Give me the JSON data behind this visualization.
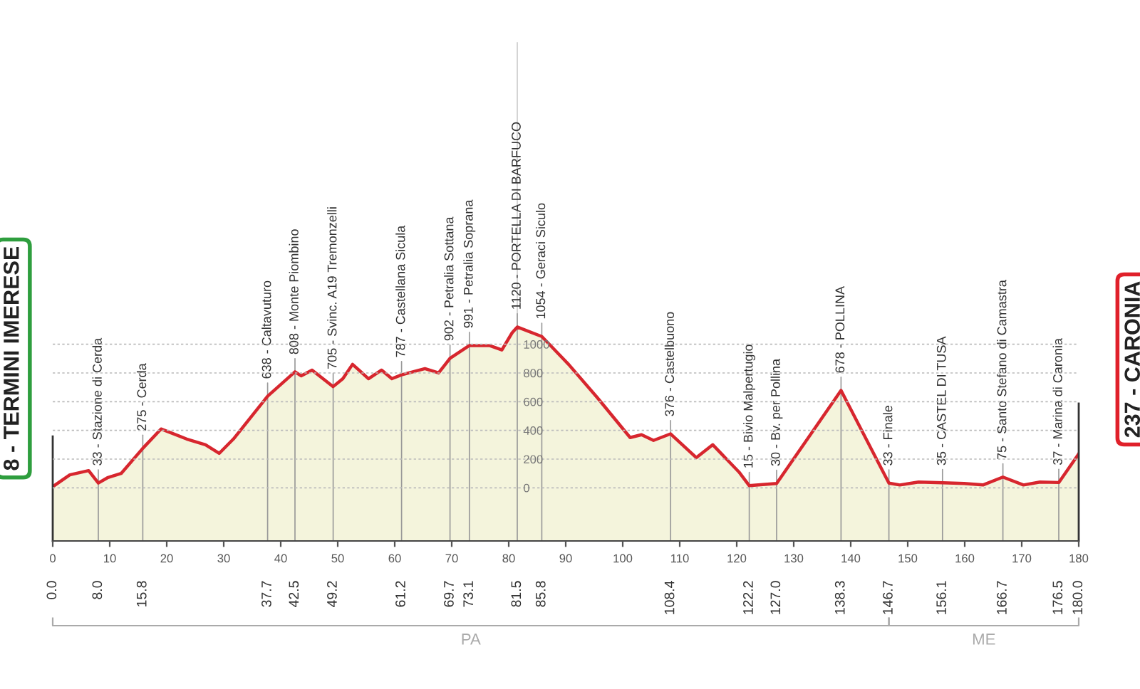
{
  "chart_data": {
    "type": "area",
    "x": [
      0,
      3.0,
      6.3,
      8.0,
      9.6,
      12.0,
      15.8,
      19.0,
      23.5,
      26.8,
      29.2,
      31.7,
      37.7,
      42.5,
      43.6,
      45.5,
      49.2,
      50.9,
      52.6,
      55.4,
      57.7,
      59.5,
      61.2,
      65.3,
      67.7,
      69.7,
      73.1,
      76.7,
      78.8,
      80.6,
      81.5,
      85.8,
      90.5,
      95.5,
      101.3,
      103.3,
      105.4,
      108.4,
      112.9,
      115.8,
      120.4,
      122.2,
      127.0,
      138.3,
      146.7,
      148.6,
      151.9,
      156.1,
      159.9,
      163.2,
      166.7,
      170.3,
      173.2,
      176.5,
      180.0
    ],
    "series": [
      {
        "color": "#f4f4dc",
        "values": [
          8,
          90,
          120,
          33,
          70,
          100,
          275,
          410,
          340,
          300,
          240,
          340,
          638,
          808,
          780,
          820,
          705,
          760,
          860,
          760,
          820,
          760,
          787,
          830,
          800,
          902,
          991,
          990,
          960,
          1080,
          1120,
          1054,
          860,
          630,
          350,
          370,
          330,
          376,
          210,
          300,
          110,
          15,
          30,
          678,
          33,
          20,
          40,
          35,
          30,
          20,
          75,
          20,
          40,
          37,
          237
        ]
      }
    ],
    "xlim": [
      0,
      180
    ],
    "x2lim": [
      0,
      180
    ],
    "xticks": [
      0,
      10,
      20,
      30,
      40,
      50,
      60,
      70,
      80,
      90,
      100,
      110,
      120,
      130,
      140,
      150,
      160,
      170,
      180
    ],
    "ylim": [
      -370,
      3100
    ],
    "yticks": [
      0,
      200,
      400,
      600,
      800,
      1000
    ],
    "x2ticks": [
      {
        "value": 0,
        "label": "0.0"
      },
      {
        "value": 8.0,
        "label": "8.0"
      },
      {
        "value": 15.8,
        "label": "15.8"
      },
      {
        "value": 37.7,
        "label": "37.7"
      },
      {
        "value": 42.5,
        "label": "42.5"
      },
      {
        "value": 49.2,
        "label": "49.2"
      },
      {
        "value": 61.2,
        "label": "61.2"
      },
      {
        "value": 69.7,
        "label": "69.7"
      },
      {
        "value": 73.1,
        "label": "73.1"
      },
      {
        "value": 81.5,
        "label": "81.5"
      },
      {
        "value": 85.8,
        "label": "85.8"
      },
      {
        "value": 108.4,
        "label": "108.4"
      },
      {
        "value": 122.2,
        "label": "122.2"
      },
      {
        "value": 127.0,
        "label": "127.0"
      },
      {
        "value": 138.3,
        "label": "138.3"
      },
      {
        "value": 146.7,
        "label": "146.7"
      },
      {
        "value": 156.1,
        "label": "156.1"
      },
      {
        "value": 166.7,
        "label": "166.7"
      },
      {
        "value": 176.5,
        "label": "176.5"
      },
      {
        "value": 180.0,
        "label": "180.0"
      }
    ],
    "grid": "y",
    "annotations": [
      "PA",
      "ME",
      {
        "text": "8 - TERMINI IMERESE",
        "x": 0,
        "y": 8
      },
      {
        "text": "33 - Stazione di Cerda",
        "x": 8.0,
        "y": 33
      },
      {
        "text": "275 - Cerda",
        "x": 15.8,
        "y": 275
      },
      {
        "text": "638 - Caltavuturo",
        "x": 37.7,
        "y": 638
      },
      {
        "text": "808 - Monte Piombino",
        "x": 42.5,
        "y": 808
      },
      {
        "text": "705 - Svinc. A19 Tremonzelli",
        "x": 49.2,
        "y": 705
      },
      {
        "text": "787 - Castellana Sicula",
        "x": 61.2,
        "y": 787
      },
      {
        "text": "902 - Petralia Sottana",
        "x": 69.7,
        "y": 902
      },
      {
        "text": "991 - Petralia Soprana",
        "x": 73.1,
        "y": 991
      },
      {
        "text": "1120 - PORTELLA DI BARFUCO",
        "x": 81.5,
        "y": 1120
      },
      {
        "text": "1054 - Geraci Siculo",
        "x": 85.8,
        "y": 1054
      },
      {
        "text": "376 - Castelbuono",
        "x": 108.4,
        "y": 376
      },
      {
        "text": "15 - Bivio Malpertugio",
        "x": 122.2,
        "y": 15
      },
      {
        "text": "30 - Bv. per Pollina",
        "x": 127.0,
        "y": 30
      },
      {
        "text": "678 - POLLINA",
        "x": 138.3,
        "y": 678
      },
      {
        "text": "33 - Finale",
        "x": 146.7,
        "y": 33
      },
      {
        "text": "35 - CASTEL DI TUSA",
        "x": 156.1,
        "y": 35
      },
      {
        "text": "75 - Santo Stefano di Camastra",
        "x": 166.7,
        "y": 75
      },
      {
        "text": "37 - Marina di Caronia",
        "x": 176.5,
        "y": 37
      },
      {
        "text": "237 - CARONIA",
        "x": 180.0,
        "y": 237
      }
    ]
  }
}
